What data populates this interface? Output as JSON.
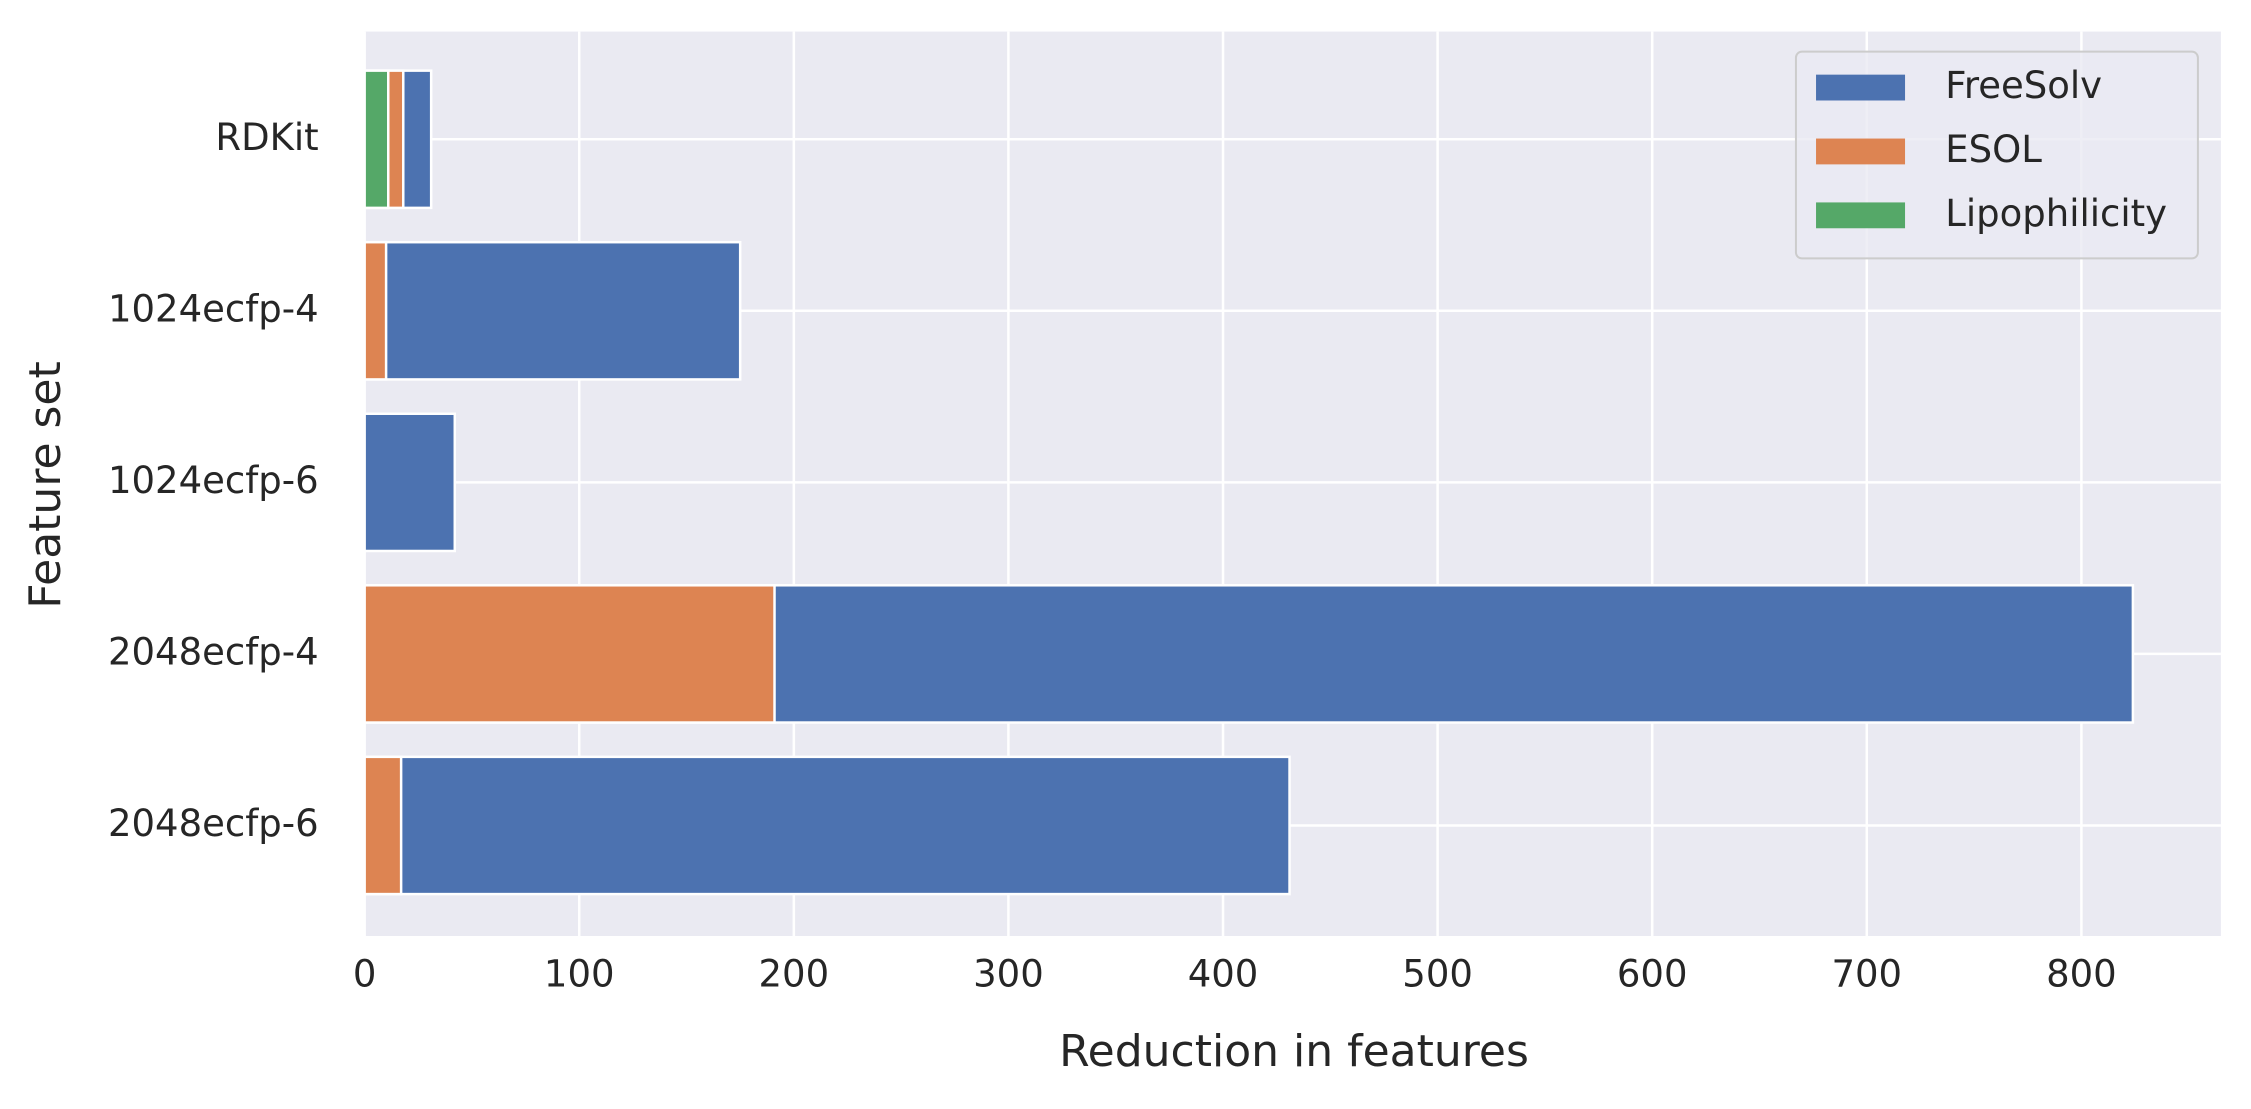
{
  "chart_data": {
    "type": "bar",
    "orientation": "horizontal",
    "stacked": false,
    "xlabel": "Reduction in features",
    "ylabel": "Feature set",
    "categories": [
      "RDKit",
      "1024ecfp-4",
      "1024ecfp-6",
      "2048ecfp-4",
      "2048ecfp-6"
    ],
    "series": [
      {
        "name": "FreeSolv",
        "color": "#4c72b0",
        "values": [
          31,
          175,
          42,
          824,
          431
        ]
      },
      {
        "name": "ESOL",
        "color": "#dd8452",
        "values": [
          18,
          10,
          0,
          191,
          17
        ]
      },
      {
        "name": "Lipophilicity",
        "color": "#55a868",
        "values": [
          11,
          0,
          0,
          0,
          0
        ]
      }
    ],
    "xlim": [
      0,
      865
    ],
    "xticks": [
      0,
      100,
      200,
      300,
      400,
      500,
      600,
      700,
      800
    ],
    "grid": true,
    "legend": "upper right"
  }
}
